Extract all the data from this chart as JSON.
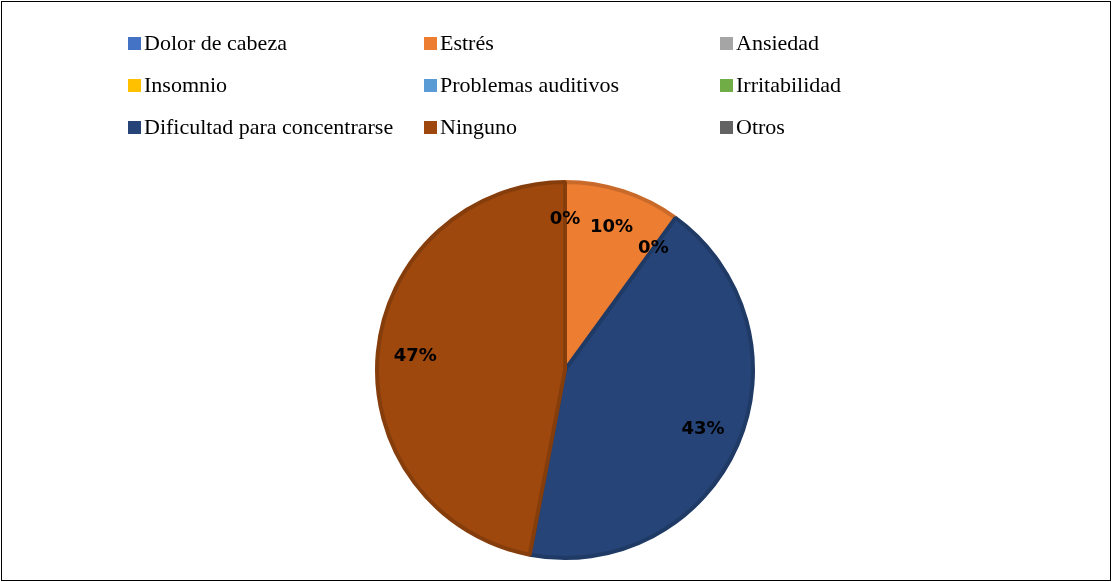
{
  "chart_data": {
    "type": "pie",
    "legend": "top",
    "categories": [
      "Dolor de cabeza",
      "Estrés",
      "Ansiedad",
      "Insomnio",
      "Problemas auditivos",
      "Irritabilidad",
      "Dificultad para concentrarse",
      "Ninguno",
      "Otros"
    ],
    "values": [
      0,
      10,
      0,
      0,
      0,
      0,
      43,
      47,
      0
    ],
    "colors": [
      "#4472c4",
      "#ed7d31",
      "#a5a5a5",
      "#ffc000",
      "#5b9bd5",
      "#70ad47",
      "#264478",
      "#9e480e",
      "#636363"
    ],
    "value_labels": [
      "0%",
      "10%",
      "0%",
      null,
      null,
      null,
      "43%",
      "47%",
      null
    ]
  }
}
